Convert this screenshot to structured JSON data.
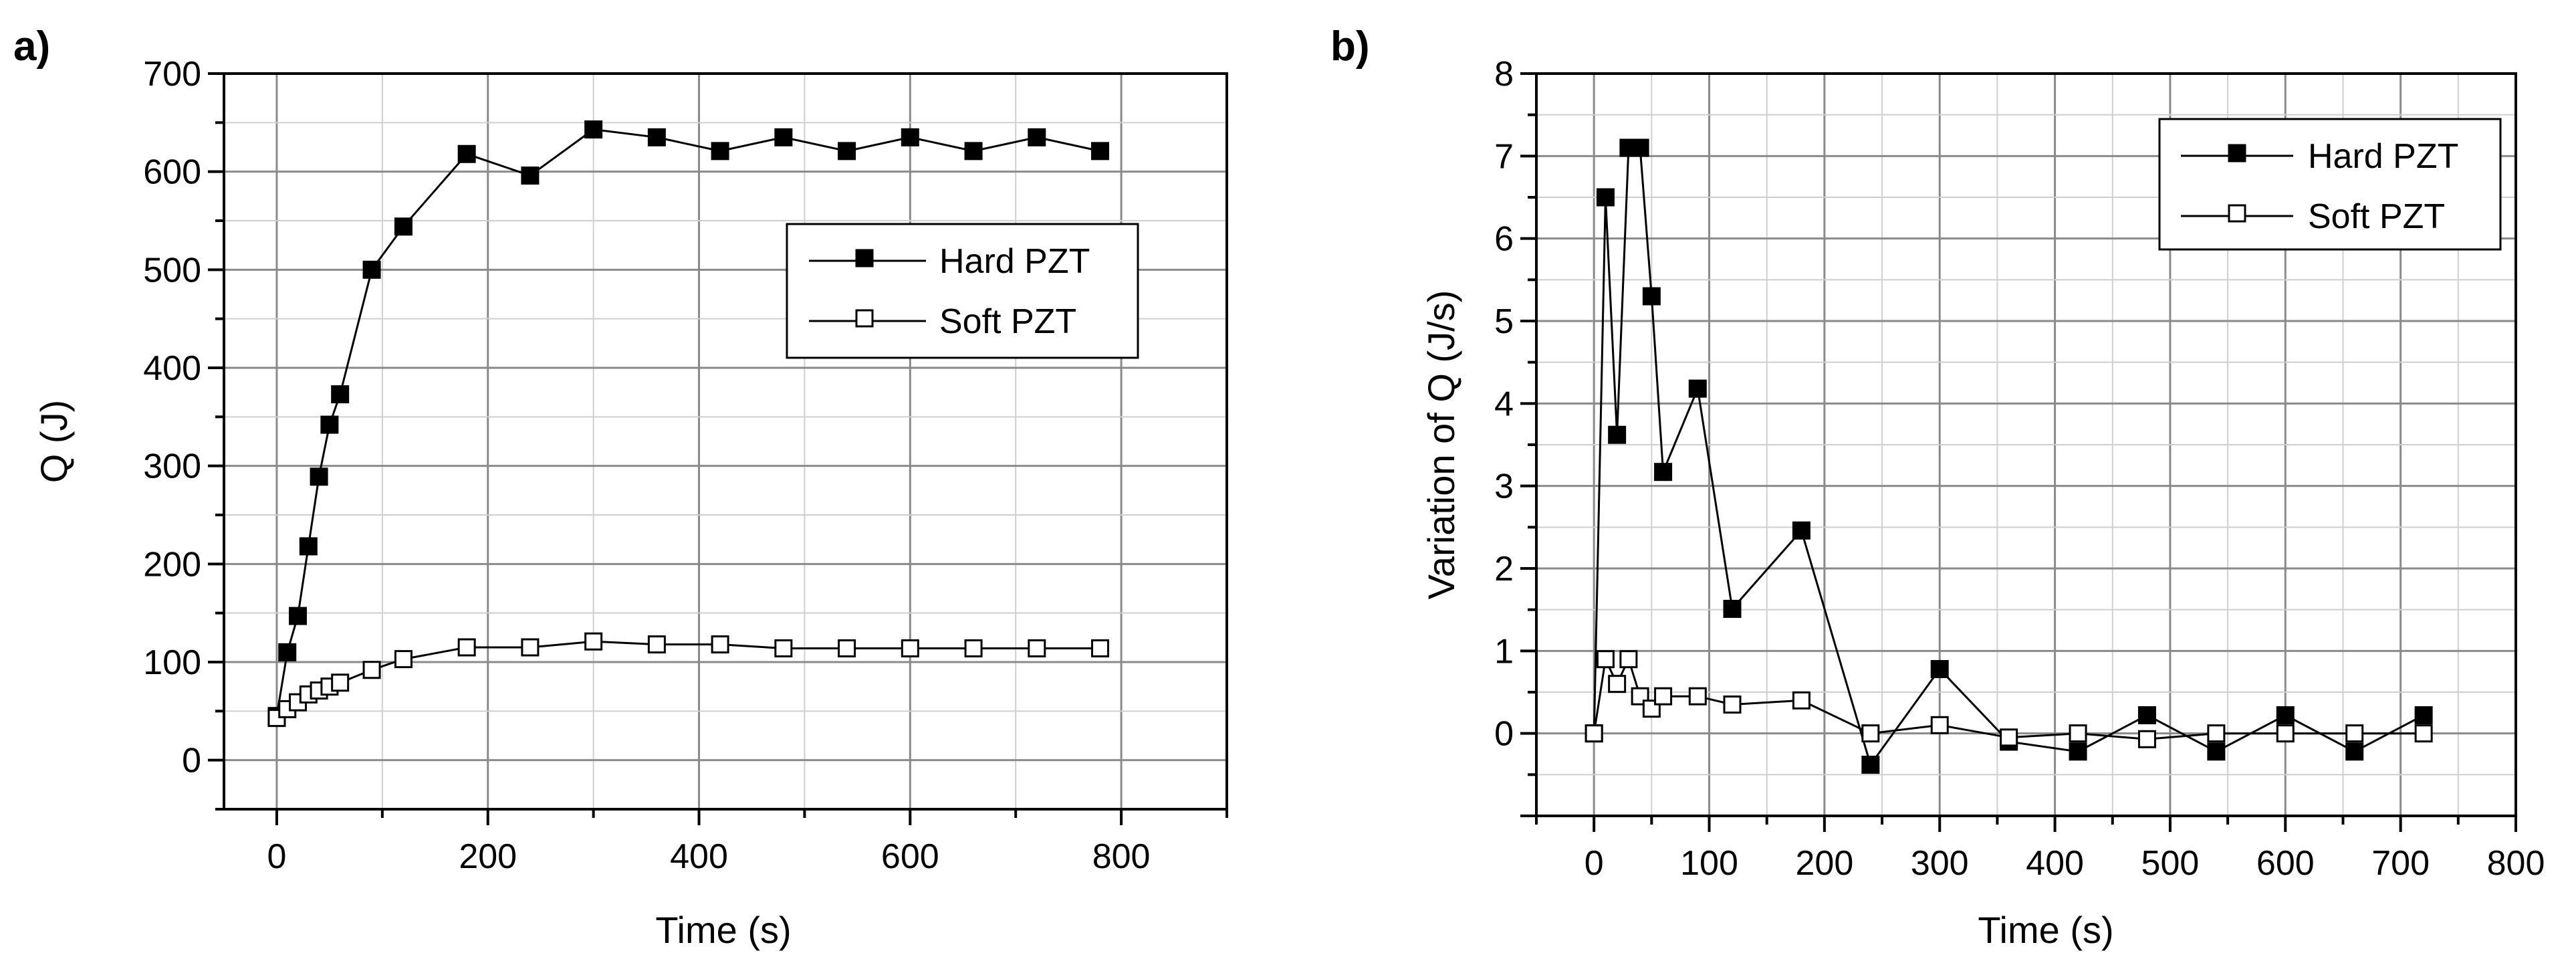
{
  "chart_data": [
    {
      "type": "line",
      "panel_label": "a)",
      "xlabel": "Time (s)",
      "ylabel": "Q (J)",
      "xlim": [
        -50,
        900
      ],
      "ylim": [
        -50,
        700
      ],
      "x_ticks": [
        0,
        200,
        400,
        600,
        800
      ],
      "y_ticks": [
        0,
        100,
        200,
        300,
        400,
        500,
        600,
        700
      ],
      "grid": true,
      "legend_position": "right",
      "series": [
        {
          "name": "Hard PZT",
          "marker": "filled-square",
          "x": [
            0,
            10,
            20,
            30,
            40,
            50,
            60,
            90,
            120,
            180,
            240,
            300,
            360,
            420,
            480,
            540,
            600,
            660,
            720,
            780
          ],
          "y": [
            45,
            110,
            147,
            218,
            289,
            342,
            373,
            500,
            544,
            618,
            596,
            643,
            635,
            621,
            635,
            621,
            635,
            621,
            635,
            621
          ]
        },
        {
          "name": "Soft PZT",
          "marker": "open-square",
          "x": [
            0,
            10,
            20,
            30,
            40,
            50,
            60,
            90,
            120,
            180,
            240,
            300,
            360,
            420,
            480,
            540,
            600,
            660,
            720,
            780
          ],
          "y": [
            43,
            52,
            59,
            67,
            71,
            75,
            79,
            92,
            103,
            115,
            115,
            121,
            118,
            118,
            114,
            114,
            114,
            114,
            114,
            114
          ]
        }
      ]
    },
    {
      "type": "line",
      "panel_label": "b)",
      "xlabel": "Time (s)",
      "ylabel": "Variation of Q (J/s)",
      "xlim": [
        -50,
        800
      ],
      "ylim": [
        -1,
        8
      ],
      "x_ticks": [
        0,
        100,
        200,
        300,
        400,
        500,
        600,
        700,
        800
      ],
      "y_ticks": [
        0,
        1,
        2,
        3,
        4,
        5,
        6,
        7,
        8
      ],
      "grid": true,
      "legend_position": "top-right",
      "series": [
        {
          "name": "Hard PZT",
          "marker": "filled-square",
          "x": [
            0,
            10,
            20,
            30,
            40,
            50,
            60,
            90,
            120,
            180,
            240,
            300,
            360,
            420,
            480,
            540,
            600,
            660,
            720
          ],
          "y": [
            0,
            6.5,
            3.62,
            7.1,
            7.1,
            5.3,
            3.17,
            4.18,
            1.51,
            2.46,
            -0.38,
            0.78,
            -0.1,
            -0.22,
            0.22,
            -0.22,
            0.22,
            -0.22,
            0.22
          ]
        },
        {
          "name": "Soft PZT",
          "marker": "open-square",
          "x": [
            0,
            10,
            20,
            30,
            40,
            50,
            60,
            90,
            120,
            180,
            240,
            300,
            360,
            420,
            480,
            540,
            600,
            660,
            720
          ],
          "y": [
            0,
            0.9,
            0.6,
            0.9,
            0.45,
            0.3,
            0.45,
            0.45,
            0.35,
            0.4,
            0,
            0.1,
            -0.05,
            0,
            -0.07,
            0,
            0,
            0,
            0
          ]
        }
      ]
    }
  ]
}
